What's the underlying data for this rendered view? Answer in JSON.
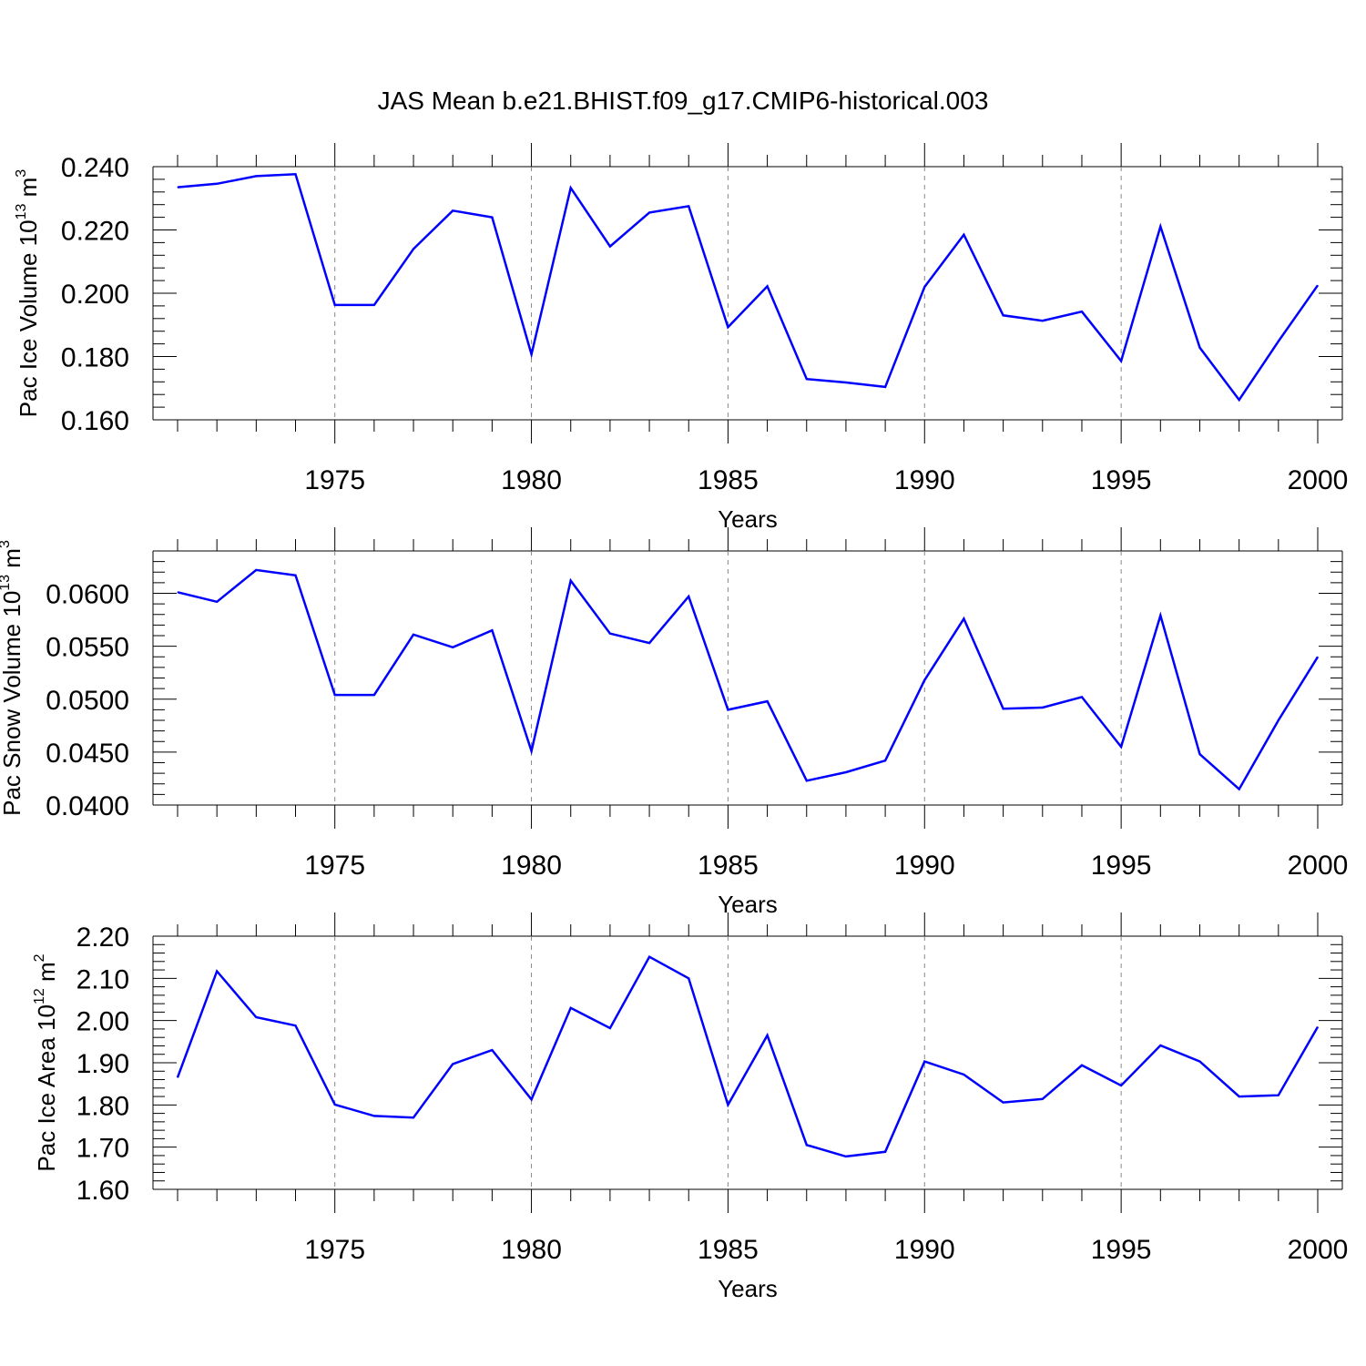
{
  "title": "JAS Mean b.e21.BHIST.f09_g17.CMIP6-historical.003",
  "chart_data": [
    {
      "type": "line",
      "title": "JAS Mean b.e21.BHIST.f09_g17.CMIP6-historical.003",
      "xlabel": "Years",
      "ylabel": "Pac Ice Volume 10",
      "ylabel_exp": "13",
      "ylabel_unit": "m",
      "ylabel_unit_exp": "3",
      "xlim": [
        1971,
        2000
      ],
      "ylim": [
        0.16,
        0.24
      ],
      "yticks": [
        0.16,
        0.18,
        0.2,
        0.22,
        0.24
      ],
      "ytick_labels": [
        "0.160",
        "0.180",
        "0.200",
        "0.220",
        "0.240"
      ],
      "xticks": [
        1975,
        1980,
        1985,
        1990,
        1995,
        2000
      ],
      "xtick_labels": [
        "1975",
        "1980",
        "1985",
        "1990",
        "1995",
        "2000"
      ],
      "line_color": "#0000ff",
      "x": [
        1971,
        1972,
        1973,
        1974,
        1975,
        1976,
        1977,
        1978,
        1979,
        1980,
        1981,
        1982,
        1983,
        1984,
        1985,
        1986,
        1987,
        1988,
        1989,
        1990,
        1991,
        1992,
        1993,
        1994,
        1995,
        1996,
        1997,
        1998,
        1999,
        2000
      ],
      "values": [
        0.2335,
        0.2346,
        0.237,
        0.2376,
        0.1963,
        0.1963,
        0.214,
        0.2261,
        0.224,
        0.1807,
        0.2333,
        0.2148,
        0.2255,
        0.2275,
        0.1893,
        0.2022,
        0.1729,
        0.1718,
        0.1704,
        0.202,
        0.2185,
        0.193,
        0.1913,
        0.1942,
        0.1786,
        0.2211,
        0.1828,
        0.1663,
        0.1848,
        0.2025
      ]
    },
    {
      "type": "line",
      "xlabel": "Years",
      "ylabel": "Pac Snow Volume 10",
      "ylabel_exp": "13",
      "ylabel_unit": "m",
      "ylabel_unit_exp": "3",
      "xlim": [
        1971,
        2000
      ],
      "ylim": [
        0.04,
        0.064
      ],
      "yticks": [
        0.04,
        0.045,
        0.05,
        0.055,
        0.06
      ],
      "ytick_labels": [
        "0.0400",
        "0.0450",
        "0.0500",
        "0.0550",
        "0.0600"
      ],
      "xticks": [
        1975,
        1980,
        1985,
        1990,
        1995,
        2000
      ],
      "xtick_labels": [
        "1975",
        "1980",
        "1985",
        "1990",
        "1995",
        "2000"
      ],
      "line_color": "#0000ff",
      "x": [
        1971,
        1972,
        1973,
        1974,
        1975,
        1976,
        1977,
        1978,
        1979,
        1980,
        1981,
        1982,
        1983,
        1984,
        1985,
        1986,
        1987,
        1988,
        1989,
        1990,
        1991,
        1992,
        1993,
        1994,
        1995,
        1996,
        1997,
        1998,
        1999,
        2000
      ],
      "values": [
        0.0601,
        0.0592,
        0.0622,
        0.0617,
        0.0504,
        0.0504,
        0.0561,
        0.0549,
        0.0565,
        0.0451,
        0.0612,
        0.0562,
        0.0553,
        0.0597,
        0.049,
        0.0498,
        0.0423,
        0.0431,
        0.0442,
        0.0518,
        0.0576,
        0.0491,
        0.0492,
        0.0502,
        0.0455,
        0.0579,
        0.0448,
        0.0415,
        0.048,
        0.054
      ]
    },
    {
      "type": "line",
      "xlabel": "Years",
      "ylabel": "Pac Ice Area 10",
      "ylabel_exp": "12",
      "ylabel_unit": "m",
      "ylabel_unit_exp": "2",
      "xlim": [
        1971,
        2000
      ],
      "ylim": [
        1.6,
        2.2
      ],
      "yticks": [
        1.6,
        1.7,
        1.8,
        1.9,
        2.0,
        2.1,
        2.2
      ],
      "ytick_labels": [
        "1.60",
        "1.70",
        "1.80",
        "1.90",
        "2.00",
        "2.10",
        "2.20"
      ],
      "xticks": [
        1975,
        1980,
        1985,
        1990,
        1995,
        2000
      ],
      "xtick_labels": [
        "1975",
        "1980",
        "1985",
        "1990",
        "1995",
        "2000"
      ],
      "line_color": "#0000ff",
      "x": [
        1971,
        1972,
        1973,
        1974,
        1975,
        1976,
        1977,
        1978,
        1979,
        1980,
        1981,
        1982,
        1983,
        1984,
        1985,
        1986,
        1987,
        1988,
        1989,
        1990,
        1991,
        1992,
        1993,
        1994,
        1995,
        1996,
        1997,
        1998,
        1999,
        2000
      ],
      "values": [
        1.865,
        2.117,
        2.008,
        1.988,
        1.801,
        1.774,
        1.77,
        1.897,
        1.93,
        1.813,
        2.03,
        1.982,
        2.151,
        2.1,
        1.8,
        1.965,
        1.705,
        1.678,
        1.689,
        1.903,
        1.872,
        1.806,
        1.814,
        1.894,
        1.846,
        1.941,
        1.903,
        1.82,
        1.823,
        1.985
      ]
    }
  ]
}
